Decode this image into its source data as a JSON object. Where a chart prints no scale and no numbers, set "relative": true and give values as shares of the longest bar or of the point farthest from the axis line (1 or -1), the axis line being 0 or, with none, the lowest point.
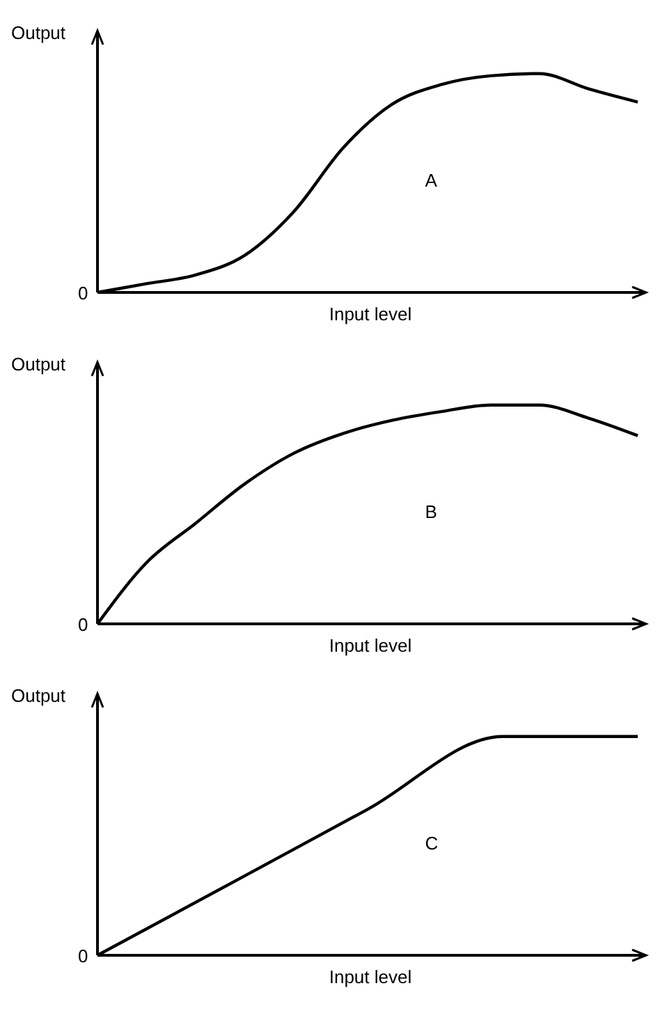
{
  "chart_data": [
    {
      "type": "line",
      "xlabel": "Input level",
      "ylabel": "Output",
      "relative": true,
      "annotations": [
        "0"
      ],
      "categories": [
        null,
        null,
        null,
        null,
        null,
        null,
        null,
        null,
        null,
        null,
        null,
        null
      ],
      "series": [
        {
          "name": "A",
          "color": "#000000",
          "values": [
            0,
            0.04,
            0.08,
            0.17,
            0.37,
            0.66,
            0.86,
            0.95,
            0.99,
            1,
            0.93,
            0.87
          ]
        }
      ]
    },
    {
      "type": "line",
      "xlabel": "Input level",
      "ylabel": "Output",
      "relative": true,
      "annotations": [
        "0"
      ],
      "categories": [
        null,
        null,
        null,
        null,
        null,
        null,
        null,
        null,
        null,
        null,
        null,
        null
      ],
      "series": [
        {
          "name": "B",
          "color": "#000000",
          "values": [
            0,
            0.28,
            0.46,
            0.64,
            0.78,
            0.87,
            0.93,
            0.97,
            1,
            1,
            0.94,
            0.86
          ]
        }
      ]
    },
    {
      "type": "line",
      "xlabel": "Input level",
      "ylabel": "Output",
      "relative": true,
      "annotations": [
        "0"
      ],
      "categories": [
        null,
        null,
        null,
        null,
        null
      ],
      "series": [
        {
          "name": "C",
          "color": "#000000",
          "values": [
            0,
            0.333,
            0.667,
            1,
            1
          ]
        }
      ]
    }
  ]
}
